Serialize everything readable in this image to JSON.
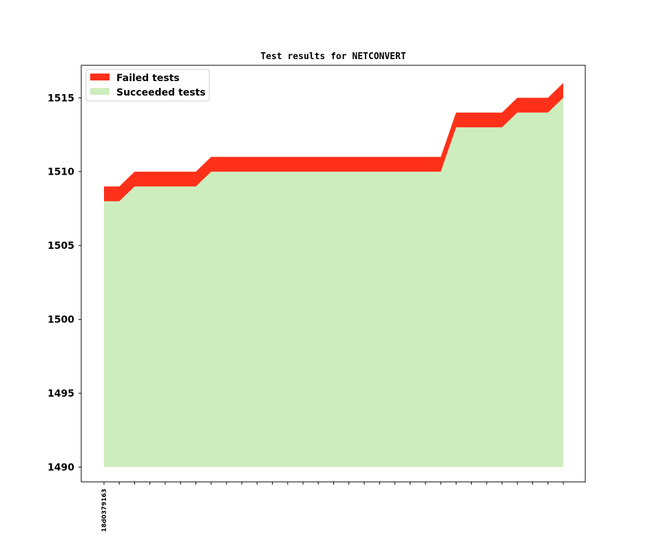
{
  "chart_data": {
    "type": "area",
    "title": "Test results for NETCONVERT",
    "xlabel": "",
    "ylabel": "",
    "x_tick_labels": [
      "18d0379163"
    ],
    "x_count": 31,
    "ylim": [
      1489.0,
      1517.2
    ],
    "yticks": [
      1490,
      1495,
      1500,
      1505,
      1510,
      1515
    ],
    "grid": false,
    "legend_position": "top-left",
    "series": [
      {
        "name": "Failed tests",
        "color": "#ff3019",
        "values": [
          1,
          1,
          1,
          1,
          1,
          1,
          1,
          1,
          1,
          1,
          1,
          1,
          1,
          1,
          1,
          1,
          1,
          1,
          1,
          1,
          1,
          1,
          1,
          1,
          1,
          1,
          1,
          1,
          1,
          1,
          1
        ]
      },
      {
        "name": "Succeeded tests",
        "color": "#ceedbe",
        "values": [
          1508,
          1508,
          1509,
          1509,
          1509,
          1509,
          1509,
          1510,
          1510,
          1510,
          1510,
          1510,
          1510,
          1510,
          1510,
          1510,
          1510,
          1510,
          1510,
          1510,
          1510,
          1510,
          1510,
          1513,
          1513,
          1513,
          1513,
          1514,
          1514,
          1514,
          1515
        ]
      }
    ],
    "baseline": 1490
  }
}
